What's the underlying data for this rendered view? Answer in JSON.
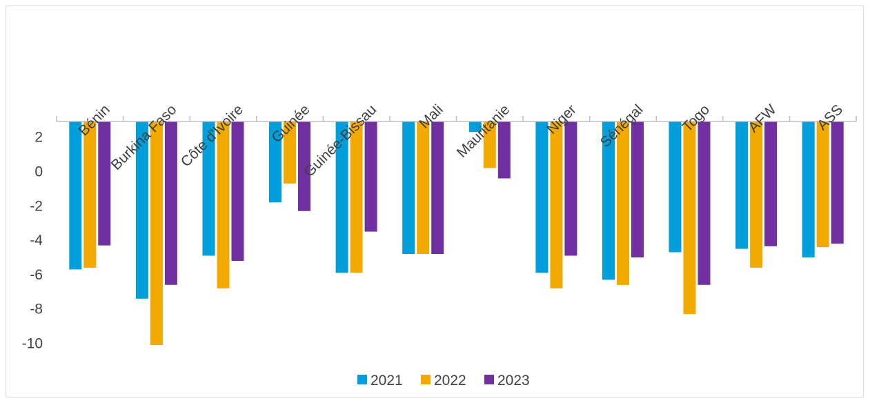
{
  "chart_data": {
    "type": "bar",
    "title": "",
    "xlabel": "",
    "ylabel": "",
    "ylim": [
      -12,
      3
    ],
    "yticks": [
      2,
      0,
      -2,
      -4,
      -6,
      -8,
      -10
    ],
    "ytick_labels": [
      "2",
      "0",
      "-2",
      "-4",
      "-6",
      "-8",
      "-10"
    ],
    "categories": [
      "Bénin",
      "Burkina Faso",
      "Côte d'Ivoire",
      "Guinée",
      "Guinée-Bissau",
      "Mali",
      "Mauritanie",
      "Niger",
      "Sénégal",
      "Togo",
      "AFW",
      "ASS"
    ],
    "series": [
      {
        "name": "2021",
        "color": "#009fdb",
        "values": [
          -5.7,
          -7.4,
          -4.9,
          -1.8,
          -5.9,
          -4.8,
          2.3,
          -5.9,
          -6.3,
          -4.7,
          -4.5,
          -5.0
        ]
      },
      {
        "name": "2022",
        "color": "#f2a900",
        "values": [
          -5.6,
          -10.1,
          -6.8,
          -0.7,
          -5.9,
          -4.8,
          0.2,
          -6.8,
          -6.6,
          -8.3,
          -5.6,
          -4.4
        ]
      },
      {
        "name": "2023",
        "color": "#7030a0",
        "values": [
          -4.3,
          -6.6,
          -5.2,
          -2.3,
          -3.5,
          -4.8,
          -0.4,
          -4.9,
          -5.0,
          -6.6,
          -4.35,
          -4.2
        ]
      }
    ],
    "grid": false,
    "legend": "bottom",
    "category_axis_position": "top"
  }
}
